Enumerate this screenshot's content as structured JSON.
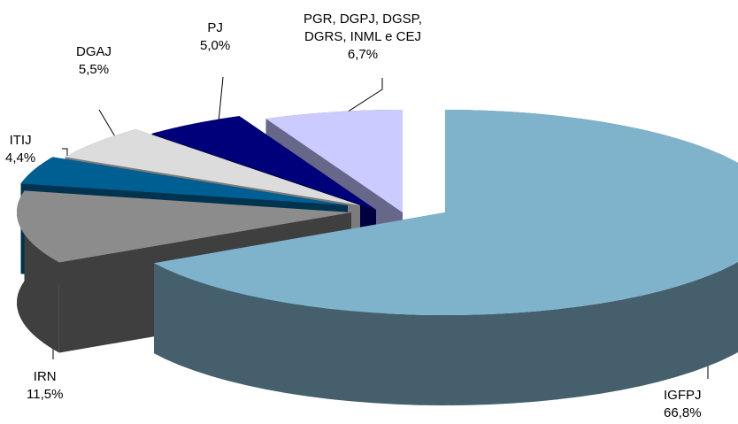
{
  "chart_data": {
    "type": "pie",
    "style": "3d-exploded",
    "slices": [
      {
        "label": "IGFPJ",
        "value": "66,8%",
        "pct": 66.8,
        "color": "#7fb3cc",
        "side": "#45606c"
      },
      {
        "label": "IRN",
        "value": "11,5%",
        "pct": 11.5,
        "color": "#8c8c8c",
        "side": "#3f3f3f"
      },
      {
        "label": "ITIJ",
        "value": "4,4%",
        "pct": 4.4,
        "color": "#005f92",
        "side": "#00334f"
      },
      {
        "label": "DGAJ",
        "value": "5,5%",
        "pct": 5.5,
        "color": "#dcdcdc",
        "side": "#7c7c7c"
      },
      {
        "label": "PJ",
        "value": "5,0%",
        "pct": 5.0,
        "color": "#00007a",
        "side": "#000040"
      },
      {
        "label_lines": [
          "PGR, DGPJ, DGSP,",
          "DGRS, INML e CEJ"
        ],
        "value": "6,7%",
        "pct": 6.7,
        "color": "#cccbff",
        "side": "#67678a"
      }
    ]
  }
}
